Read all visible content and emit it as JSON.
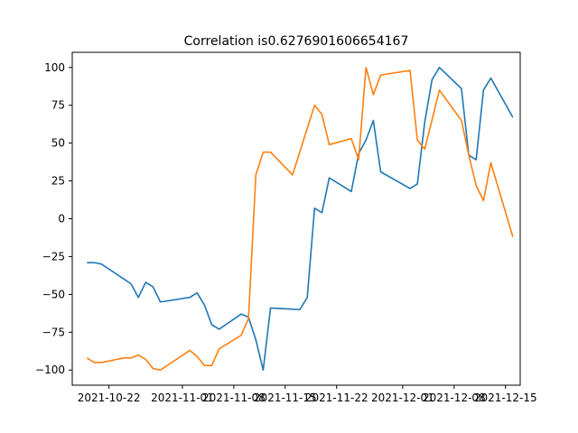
{
  "chart_data": {
    "type": "line",
    "title": "Correlation is0.6276901606654167",
    "xlabel": "",
    "ylabel": "",
    "x_type": "date",
    "xlim": [
      "2021-10-17",
      "2021-12-17"
    ],
    "ylim": [
      -110,
      110
    ],
    "x_ticks": [
      "2021-10-22",
      "2021-11-01",
      "2021-11-08",
      "2021-11-15",
      "2021-11-22",
      "2021-12-01",
      "2021-12-08",
      "2021-12-15"
    ],
    "y_ticks": [
      100,
      75,
      50,
      25,
      0,
      -25,
      -50,
      -75,
      -100
    ],
    "grid": false,
    "legend": "none",
    "series": [
      {
        "color": "#1f77b4",
        "points": [
          [
            "2021-10-19",
            -29
          ],
          [
            "2021-10-20",
            -29
          ],
          [
            "2021-10-21",
            -30
          ],
          [
            "2021-10-25",
            -43
          ],
          [
            "2021-10-26",
            -52
          ],
          [
            "2021-10-27",
            -42
          ],
          [
            "2021-10-28",
            -45
          ],
          [
            "2021-10-29",
            -55
          ],
          [
            "2021-11-02",
            -52
          ],
          [
            "2021-11-03",
            -49
          ],
          [
            "2021-11-04",
            -57
          ],
          [
            "2021-11-05",
            -70
          ],
          [
            "2021-11-06",
            -73
          ],
          [
            "2021-11-09",
            -63
          ],
          [
            "2021-11-10",
            -65
          ],
          [
            "2021-11-11",
            -80
          ],
          [
            "2021-11-12",
            -100
          ],
          [
            "2021-11-13",
            -59
          ],
          [
            "2021-11-17",
            -60
          ],
          [
            "2021-11-18",
            -52
          ],
          [
            "2021-11-19",
            7
          ],
          [
            "2021-11-20",
            4
          ],
          [
            "2021-11-21",
            27
          ],
          [
            "2021-11-24",
            18
          ],
          [
            "2021-11-25",
            43
          ],
          [
            "2021-11-26",
            52
          ],
          [
            "2021-11-27",
            65
          ],
          [
            "2021-11-28",
            31
          ],
          [
            "2021-12-02",
            20
          ],
          [
            "2021-12-03",
            23
          ],
          [
            "2021-12-04",
            64
          ],
          [
            "2021-12-05",
            92
          ],
          [
            "2021-12-06",
            100
          ],
          [
            "2021-12-09",
            86
          ],
          [
            "2021-12-10",
            42
          ],
          [
            "2021-12-11",
            39
          ],
          [
            "2021-12-12",
            85
          ],
          [
            "2021-12-13",
            93
          ],
          [
            "2021-12-16",
            67
          ]
        ]
      },
      {
        "color": "#ff7f0e",
        "points": [
          [
            "2021-10-19",
            -92
          ],
          [
            "2021-10-20",
            -95
          ],
          [
            "2021-10-21",
            -95
          ],
          [
            "2021-10-24",
            -92
          ],
          [
            "2021-10-25",
            -92
          ],
          [
            "2021-10-26",
            -90
          ],
          [
            "2021-10-27",
            -93
          ],
          [
            "2021-10-28",
            -99
          ],
          [
            "2021-10-29",
            -100
          ],
          [
            "2021-11-02",
            -87
          ],
          [
            "2021-11-03",
            -91
          ],
          [
            "2021-11-04",
            -97
          ],
          [
            "2021-11-05",
            -97
          ],
          [
            "2021-11-06",
            -86
          ],
          [
            "2021-11-09",
            -77
          ],
          [
            "2021-11-10",
            -66
          ],
          [
            "2021-11-11",
            29
          ],
          [
            "2021-11-12",
            44
          ],
          [
            "2021-11-13",
            44
          ],
          [
            "2021-11-16",
            29
          ],
          [
            "2021-11-19",
            75
          ],
          [
            "2021-11-20",
            69
          ],
          [
            "2021-11-21",
            49
          ],
          [
            "2021-11-24",
            53
          ],
          [
            "2021-11-25",
            39
          ],
          [
            "2021-11-26",
            100
          ],
          [
            "2021-11-27",
            82
          ],
          [
            "2021-11-28",
            95
          ],
          [
            "2021-12-02",
            98
          ],
          [
            "2021-12-03",
            52
          ],
          [
            "2021-12-04",
            46
          ],
          [
            "2021-12-06",
            85
          ],
          [
            "2021-12-09",
            65
          ],
          [
            "2021-12-10",
            42
          ],
          [
            "2021-12-11",
            22
          ],
          [
            "2021-12-12",
            12
          ],
          [
            "2021-12-13",
            37
          ],
          [
            "2021-12-16",
            -12
          ]
        ]
      }
    ]
  }
}
